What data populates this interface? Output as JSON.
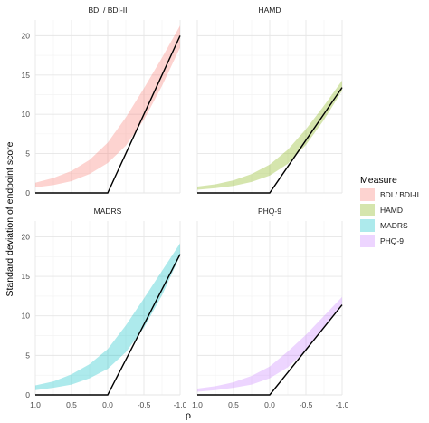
{
  "chart_data": {
    "type": "area",
    "xlabel": "ρ",
    "ylabel": "Standard deviation of endpoint score",
    "xlim": [
      1.0,
      -1.0
    ],
    "ylim": [
      0,
      22
    ],
    "x_reversed": true,
    "x_ticks": [
      1.0,
      0.5,
      0.0,
      -0.5,
      -1.0
    ],
    "x_tick_labels": [
      "1.0",
      "0.5",
      "0.0",
      "-0.5",
      "-1.0"
    ],
    "y_ticks": [
      0,
      5,
      10,
      15,
      20
    ],
    "y_tick_labels": [
      "0",
      "5",
      "10",
      "15",
      "20"
    ],
    "grid": true,
    "legend": {
      "title": "Measure",
      "position": "right",
      "entries": [
        "BDI / BDI-II",
        "HAMD",
        "MADRS",
        "PHQ-9"
      ]
    },
    "x": [
      1.0,
      0.75,
      0.5,
      0.25,
      0.0,
      -0.25,
      -0.5,
      -0.75,
      -1.0
    ],
    "panels": [
      {
        "name": "BDI / BDI-II",
        "color": "#F8766D",
        "band_lower": [
          0.7,
          1.0,
          1.5,
          2.4,
          3.8,
          6.0,
          9.3,
          13.6,
          18.5
        ],
        "band_upper": [
          1.3,
          1.9,
          2.8,
          4.2,
          6.4,
          9.6,
          13.3,
          17.2,
          21.3
        ],
        "line": [
          0,
          0,
          0,
          0,
          0,
          5.0,
          10.0,
          15.0,
          20.0
        ]
      },
      {
        "name": "HAMD",
        "color": "#7CAE00",
        "band_lower": [
          0.4,
          0.6,
          0.9,
          1.4,
          2.2,
          3.7,
          6.1,
          9.3,
          13.0
        ],
        "band_upper": [
          0.8,
          1.1,
          1.6,
          2.4,
          3.6,
          5.5,
          8.1,
          11.1,
          14.3
        ],
        "line": [
          0,
          0,
          0,
          0,
          0,
          3.35,
          6.7,
          10.05,
          13.4
        ]
      },
      {
        "name": "MADRS",
        "color": "#00BFC4",
        "band_lower": [
          0.6,
          0.9,
          1.3,
          2.1,
          3.3,
          5.4,
          8.5,
          12.6,
          17.6
        ],
        "band_upper": [
          1.2,
          1.7,
          2.6,
          3.9,
          5.8,
          8.8,
          12.2,
          15.7,
          19.2
        ],
        "line": [
          0,
          0,
          0,
          0,
          0,
          4.45,
          8.9,
          13.35,
          17.8
        ]
      },
      {
        "name": "PHQ-9",
        "color": "#C77CFF",
        "band_lower": [
          0.4,
          0.6,
          0.9,
          1.3,
          2.1,
          3.5,
          5.6,
          8.4,
          11.5
        ],
        "band_upper": [
          0.8,
          1.1,
          1.6,
          2.4,
          3.6,
          5.5,
          7.6,
          10.0,
          12.4
        ],
        "line": [
          0,
          0,
          0,
          0,
          0,
          2.85,
          5.7,
          8.55,
          11.4
        ]
      }
    ]
  }
}
